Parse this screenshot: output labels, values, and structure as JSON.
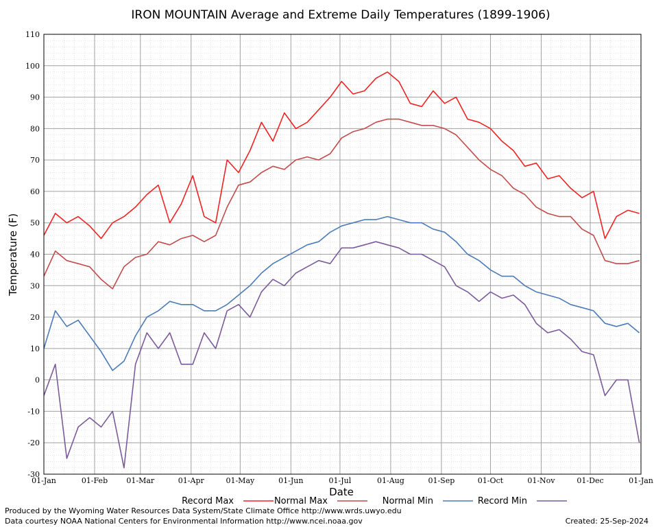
{
  "chart_data": {
    "type": "line",
    "title": "IRON MOUNTAIN Average and Extreme Daily Temperatures (1899-1906)",
    "xlabel": "Date",
    "ylabel": "Temperature (F)",
    "ylim": [
      -30,
      110
    ],
    "y_ticks": [
      -30,
      -20,
      -10,
      0,
      10,
      20,
      30,
      40,
      50,
      60,
      70,
      80,
      90,
      100,
      110
    ],
    "x_tick_labels": [
      "01-Jan",
      "01-Feb",
      "01-Mar",
      "01-Apr",
      "01-May",
      "01-Jun",
      "01-Jul",
      "01-Aug",
      "01-Sep",
      "01-Oct",
      "01-Nov",
      "01-Dec",
      "01-Jan"
    ],
    "x_unit": "day of year",
    "grid": true,
    "legend_placement": "bottom",
    "series": [
      {
        "name": "Record Max",
        "color": "#ee2222",
        "x": [
          1,
          8,
          15,
          22,
          29,
          36,
          43,
          50,
          57,
          64,
          71,
          78,
          85,
          92,
          99,
          106,
          113,
          120,
          127,
          134,
          141,
          148,
          155,
          162,
          169,
          176,
          183,
          190,
          197,
          204,
          211,
          218,
          225,
          232,
          239,
          246,
          253,
          260,
          267,
          274,
          281,
          288,
          295,
          302,
          309,
          316,
          323,
          330,
          337,
          344,
          351,
          358,
          365
        ],
        "values": [
          46,
          53,
          50,
          52,
          49,
          45,
          50,
          52,
          55,
          59,
          62,
          50,
          56,
          65,
          52,
          50,
          70,
          66,
          73,
          82,
          76,
          85,
          80,
          82,
          86,
          90,
          95,
          91,
          92,
          96,
          98,
          95,
          88,
          87,
          92,
          88,
          90,
          83,
          82,
          80,
          76,
          73,
          68,
          69,
          64,
          65,
          61,
          58,
          60,
          45,
          52,
          54,
          53
        ]
      },
      {
        "name": "Normal Max",
        "color": "#c24a4a",
        "x": [
          1,
          8,
          15,
          22,
          29,
          36,
          43,
          50,
          57,
          64,
          71,
          78,
          85,
          92,
          99,
          106,
          113,
          120,
          127,
          134,
          141,
          148,
          155,
          162,
          169,
          176,
          183,
          190,
          197,
          204,
          211,
          218,
          225,
          232,
          239,
          246,
          253,
          260,
          267,
          274,
          281,
          288,
          295,
          302,
          309,
          316,
          323,
          330,
          337,
          344,
          351,
          358,
          365
        ],
        "values": [
          33,
          41,
          38,
          37,
          36,
          32,
          29,
          36,
          39,
          40,
          44,
          43,
          45,
          46,
          44,
          46,
          55,
          62,
          63,
          66,
          68,
          67,
          70,
          71,
          70,
          72,
          77,
          79,
          80,
          82,
          83,
          83,
          82,
          81,
          81,
          80,
          78,
          74,
          70,
          67,
          65,
          61,
          59,
          55,
          53,
          52,
          52,
          48,
          46,
          38,
          37,
          37,
          38
        ]
      },
      {
        "name": "Normal Min",
        "color": "#4a7ab8",
        "x": [
          1,
          8,
          15,
          22,
          29,
          36,
          43,
          50,
          57,
          64,
          71,
          78,
          85,
          92,
          99,
          106,
          113,
          120,
          127,
          134,
          141,
          148,
          155,
          162,
          169,
          176,
          183,
          190,
          197,
          204,
          211,
          218,
          225,
          232,
          239,
          246,
          253,
          260,
          267,
          274,
          281,
          288,
          295,
          302,
          309,
          316,
          323,
          330,
          337,
          344,
          351,
          358,
          365
        ],
        "values": [
          10,
          22,
          17,
          19,
          14,
          9,
          3,
          6,
          14,
          20,
          22,
          25,
          24,
          24,
          22,
          22,
          24,
          27,
          30,
          34,
          37,
          39,
          41,
          43,
          44,
          47,
          49,
          50,
          51,
          51,
          52,
          51,
          50,
          50,
          48,
          47,
          44,
          40,
          38,
          35,
          33,
          33,
          30,
          28,
          27,
          26,
          24,
          23,
          22,
          18,
          17,
          18,
          15
        ]
      },
      {
        "name": "Record Min",
        "color": "#7a5a9a",
        "x": [
          1,
          8,
          15,
          22,
          29,
          36,
          43,
          50,
          57,
          64,
          71,
          78,
          85,
          92,
          99,
          106,
          113,
          120,
          127,
          134,
          141,
          148,
          155,
          162,
          169,
          176,
          183,
          190,
          197,
          204,
          211,
          218,
          225,
          232,
          239,
          246,
          253,
          260,
          267,
          274,
          281,
          288,
          295,
          302,
          309,
          316,
          323,
          330,
          337,
          344,
          351,
          358,
          365
        ],
        "values": [
          -5,
          5,
          -25,
          -15,
          -12,
          -15,
          -10,
          -28,
          5,
          15,
          10,
          15,
          5,
          5,
          15,
          10,
          22,
          24,
          20,
          28,
          32,
          30,
          34,
          36,
          38,
          37,
          42,
          42,
          43,
          44,
          43,
          42,
          40,
          40,
          38,
          36,
          30,
          28,
          25,
          28,
          26,
          27,
          24,
          18,
          15,
          16,
          13,
          9,
          8,
          -5,
          0,
          0,
          -20
        ]
      }
    ]
  },
  "footer": {
    "produced_by": "Produced by the Wyoming Water Resources Data System/State Climate Office http://www.wrds.uwyo.edu",
    "data_courtesy": "Data courtesy NOAA National Centers for Environmental Information http://www.ncei.noaa.gov",
    "created": "Created: 25-Sep-2024"
  }
}
